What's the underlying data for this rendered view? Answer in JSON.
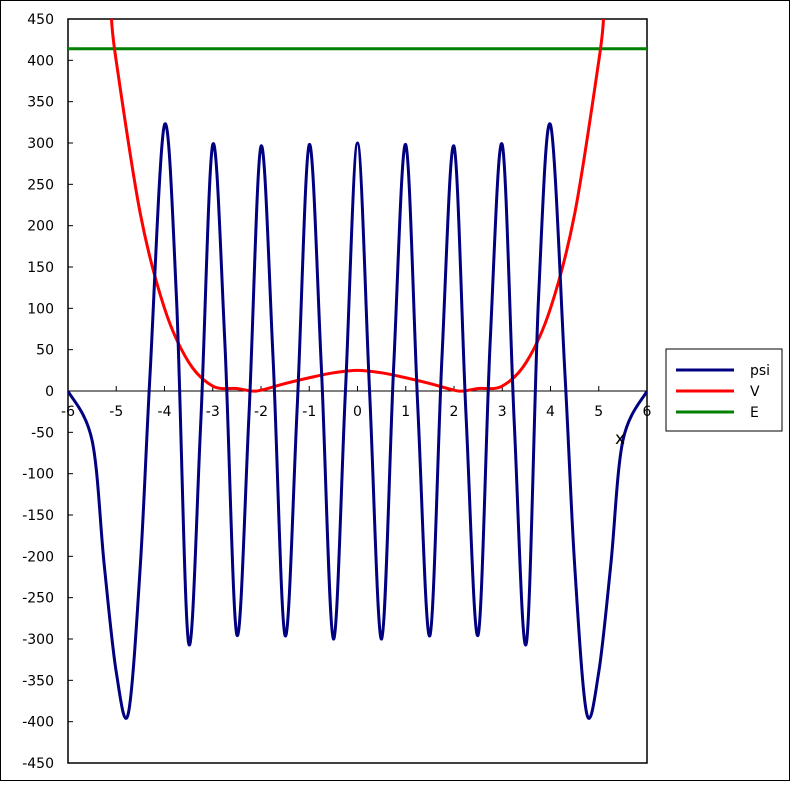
{
  "chart_data": {
    "type": "line",
    "xlabel": "x",
    "ylabel": "",
    "title": "",
    "xlim": [
      -6,
      6
    ],
    "ylim": [
      -450,
      450
    ],
    "x_ticks": [
      -6,
      -5,
      -4,
      -3,
      -2,
      -1,
      0,
      1,
      2,
      3,
      4,
      5,
      6
    ],
    "x_tick_labels": [
      "-6",
      "-5",
      "-4",
      "-3",
      "-2",
      "-1",
      "0",
      "1",
      "2",
      "3",
      "4",
      "5",
      "6"
    ],
    "y_ticks": [
      450,
      400,
      350,
      300,
      250,
      200,
      150,
      100,
      50,
      0,
      -50,
      -100,
      -150,
      -200,
      -250,
      -300,
      -350,
      -400,
      -450
    ],
    "y_tick_labels": [
      "450",
      "400",
      "350",
      "300",
      "250",
      "200",
      "150",
      "100",
      "50",
      "0",
      "-50",
      "-100",
      "-150",
      "-200",
      "-250",
      "-300",
      "-350",
      "-400",
      "-450"
    ],
    "legend_position": "right",
    "grid": false,
    "series": [
      {
        "name": "psi",
        "color": "#000080",
        "x": [
          -6.0,
          -5.5,
          -5.25,
          -5.0,
          -4.75,
          -4.5,
          -4.3,
          -4.0,
          -3.75,
          -3.5,
          -3.25,
          -3.0,
          -2.75,
          -2.5,
          -2.25,
          -2.0,
          -1.75,
          -1.5,
          -1.25,
          -1.0,
          -0.75,
          -0.5,
          -0.25,
          0.0,
          0.25,
          0.5,
          0.75,
          1.0,
          1.25,
          1.5,
          1.75,
          2.0,
          2.25,
          2.5,
          2.75,
          3.0,
          3.25,
          3.5,
          3.75,
          4.0,
          4.3,
          4.5,
          4.75,
          5.0,
          5.25,
          5.5,
          6.0
        ],
        "y": [
          0,
          -60,
          -210,
          -340,
          -390,
          -210,
          20,
          322,
          110,
          -305,
          -40,
          298,
          60,
          -295,
          -30,
          296,
          40,
          -296,
          -20,
          298,
          30,
          -300,
          0,
          300,
          0,
          -300,
          30,
          298,
          -20,
          -296,
          40,
          296,
          -30,
          -295,
          60,
          298,
          -40,
          -305,
          110,
          322,
          20,
          -210,
          -390,
          -340,
          -210,
          -60,
          0
        ]
      },
      {
        "name": "V",
        "color": "#ff0000",
        "x": [
          -5.1,
          -5.0,
          -4.5,
          -4.0,
          -3.5,
          -3.0,
          -2.5,
          -2.2,
          -2.0,
          -1.5,
          -1.0,
          -0.5,
          0.0,
          0.5,
          1.0,
          1.5,
          2.0,
          2.2,
          2.5,
          3.0,
          3.5,
          4.0,
          4.5,
          5.0,
          5.1
        ],
        "y": [
          450,
          399,
          214,
          100,
          35,
          6,
          3,
          0,
          1,
          9,
          16,
          22,
          25,
          22,
          16,
          9,
          1,
          0,
          3,
          6,
          35,
          100,
          214,
          399,
          450
        ]
      },
      {
        "name": "E",
        "color": "#008000",
        "x": [
          -6.0,
          6.0
        ],
        "y": [
          414,
          414
        ]
      }
    ]
  }
}
